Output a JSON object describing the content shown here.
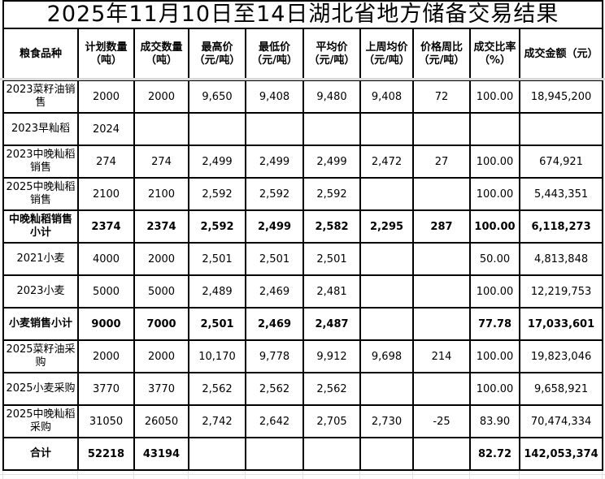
{
  "title": "2025年11月10日至14日湖北省地方储备交易结果",
  "table": {
    "headers": [
      "粮食品种",
      "计划数量\n（吨）",
      "成交数量\n（吨）",
      "最高价\n（元/吨）",
      "最低价\n（元/吨）",
      "平均价\n（元/吨）",
      "上周均价\n（元/吨）",
      "价格周比\n（元/吨）",
      "成交比率\n（%）",
      "成交金额（元）"
    ],
    "rows": [
      {
        "name": "2023菜籽油销售",
        "bold": false,
        "cells": [
          "2000",
          "2000",
          "9,650",
          "9,408",
          "9,480",
          "9,408",
          "72",
          "100.00",
          "18,945,200"
        ]
      },
      {
        "name": "2023早籼稻",
        "bold": false,
        "cells": [
          "2024",
          "",
          "",
          "",
          "",
          "",
          "",
          "",
          ""
        ]
      },
      {
        "name": "2023中晚籼稻销售",
        "bold": false,
        "cells": [
          "274",
          "274",
          "2,499",
          "2,499",
          "2,499",
          "2,472",
          "27",
          "100.00",
          "674,921"
        ]
      },
      {
        "name": "2025中晚籼稻销售",
        "bold": false,
        "cells": [
          "2100",
          "2100",
          "2,592",
          "2,592",
          "2,592",
          "",
          "",
          "100.00",
          "5,443,351"
        ]
      },
      {
        "name": "中晚籼稻销售小计",
        "bold": true,
        "cells": [
          "2374",
          "2374",
          "2,592",
          "2,499",
          "2,582",
          "2,295",
          "287",
          "100.00",
          "6,118,273"
        ]
      },
      {
        "name": "2021小麦",
        "bold": false,
        "cells": [
          "4000",
          "2000",
          "2,501",
          "2,501",
          "2,501",
          "",
          "",
          "50.00",
          "4,813,848"
        ]
      },
      {
        "name": "2023小麦",
        "bold": false,
        "cells": [
          "5000",
          "5000",
          "2,489",
          "2,469",
          "2,481",
          "",
          "",
          "100.00",
          "12,219,753"
        ]
      },
      {
        "name": "小麦销售小计",
        "bold": true,
        "cells": [
          "9000",
          "7000",
          "2,501",
          "2,469",
          "2,487",
          "",
          "",
          "77.78",
          "17,033,601"
        ]
      },
      {
        "name": "2025菜籽油采购",
        "bold": false,
        "cells": [
          "2000",
          "2000",
          "10,170",
          "9,778",
          "9,912",
          "9,698",
          "214",
          "100.00",
          "19,823,046"
        ]
      },
      {
        "name": "2025小麦采购",
        "bold": false,
        "cells": [
          "3770",
          "3770",
          "2,562",
          "2,562",
          "2,562",
          "",
          "",
          "100.00",
          "9,658,921"
        ]
      },
      {
        "name": "2025中晚籼稻采购",
        "bold": false,
        "cells": [
          "31050",
          "26050",
          "2,742",
          "2,642",
          "2,705",
          "2,730",
          "-25",
          "83.90",
          "70,474,334"
        ]
      },
      {
        "name": "合计",
        "bold": true,
        "cells": [
          "52218",
          "43194",
          "",
          "",
          "",
          "",
          "",
          "82.72",
          "142,053,374"
        ]
      }
    ]
  },
  "colors": {
    "border": "#000000",
    "freeze_seam": "#d8d8d8",
    "gridline": "#e2e2e2",
    "background": "#ffffff",
    "text": "#000000"
  }
}
